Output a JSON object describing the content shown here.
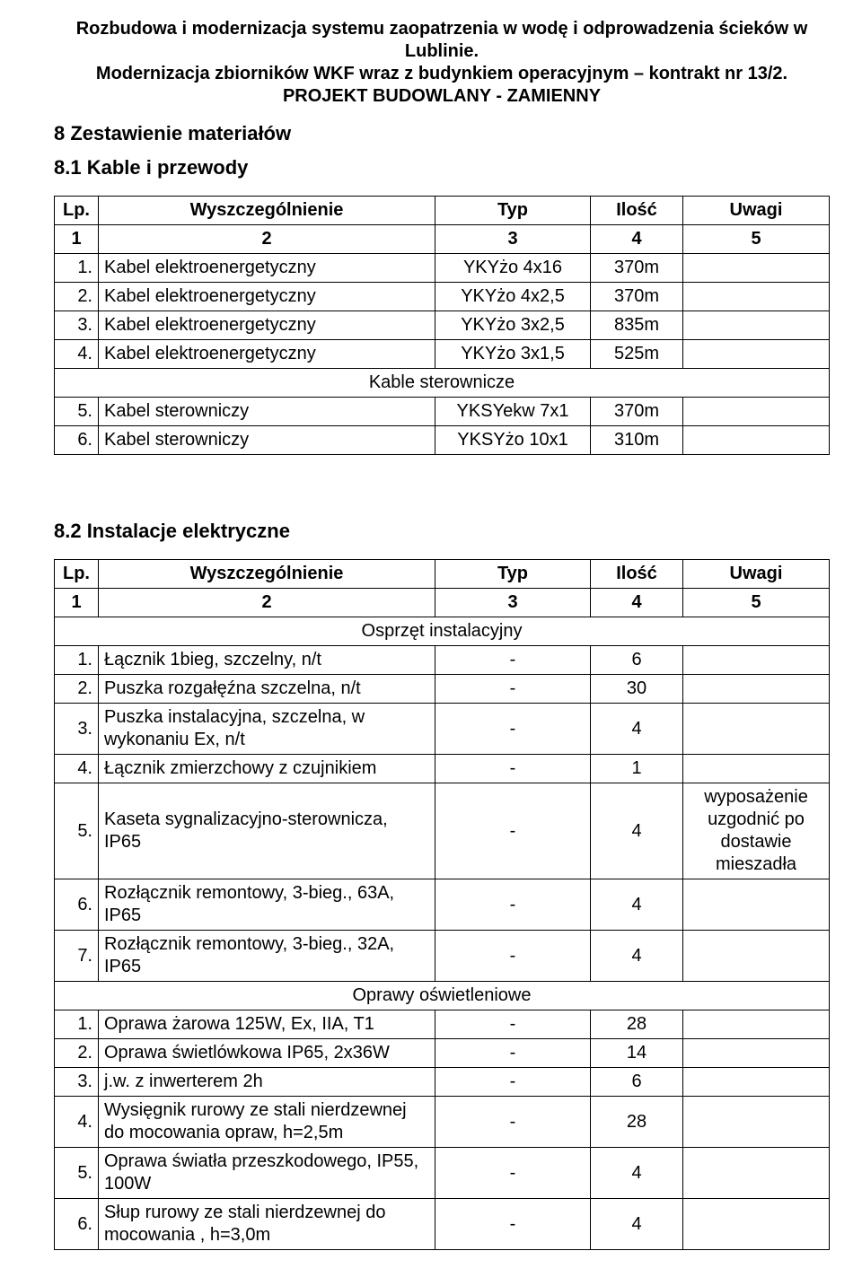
{
  "header": {
    "line1": "Rozbudowa i modernizacja systemu zaopatrzenia w wodę i odprowadzenia ścieków w Lublinie.",
    "line2": "Modernizacja zbiorników WKF wraz z budynkiem operacyjnym – kontrakt nr 13/2.",
    "line3": "PROJEKT BUDOWLANY - ZAMIENNY"
  },
  "section8": {
    "title": "8   Zestawienie materiałów",
    "sub1": {
      "title": "8.1   Kable i przewody",
      "columns": {
        "c1": "Lp.",
        "c2": "Wyszczególnienie",
        "c3": "Typ",
        "c4": "Ilość",
        "c5": "Uwagi"
      },
      "numrow": {
        "c1": "1",
        "c2": "2",
        "c3": "3",
        "c4": "4",
        "c5": "5"
      },
      "rows": [
        {
          "lp": "1.",
          "name": "Kabel elektroenergetyczny",
          "typ": "YKYżo 4x16",
          "ilosc": "370m",
          "uwagi": ""
        },
        {
          "lp": "2.",
          "name": "Kabel elektroenergetyczny",
          "typ": "YKYżo 4x2,5",
          "ilosc": "370m",
          "uwagi": ""
        },
        {
          "lp": "3.",
          "name": "Kabel elektroenergetyczny",
          "typ": "YKYżo 3x2,5",
          "ilosc": "835m",
          "uwagi": ""
        },
        {
          "lp": "4.",
          "name": "Kabel elektroenergetyczny",
          "typ": "YKYżo 3x1,5",
          "ilosc": "525m",
          "uwagi": ""
        }
      ],
      "section_label": "Kable sterownicze",
      "rows2": [
        {
          "lp": "5.",
          "name": "Kabel sterowniczy",
          "typ": "YKSYekw 7x1",
          "ilosc": "370m",
          "uwagi": ""
        },
        {
          "lp": "6.",
          "name": "Kabel sterowniczy",
          "typ": "YKSYżo 10x1",
          "ilosc": "310m",
          "uwagi": ""
        }
      ]
    },
    "sub2": {
      "title": "8.2   Instalacje elektryczne",
      "columns": {
        "c1": "Lp.",
        "c2": "Wyszczególnienie",
        "c3": "Typ",
        "c4": "Ilość",
        "c5": "Uwagi"
      },
      "numrow": {
        "c1": "1",
        "c2": "2",
        "c3": "3",
        "c4": "4",
        "c5": "5"
      },
      "group1_label": "Osprzęt instalacyjny",
      "group1": [
        {
          "lp": "1.",
          "name": "Łącznik 1bieg, szczelny, n/t",
          "typ": "-",
          "ilosc": "6",
          "uwagi": ""
        },
        {
          "lp": "2.",
          "name": "Puszka rozgałęźna szczelna, n/t",
          "typ": "-",
          "ilosc": "30",
          "uwagi": ""
        },
        {
          "lp": "3.",
          "name": "Puszka instalacyjna, szczelna, w wykonaniu Ex, n/t",
          "typ": "-",
          "ilosc": "4",
          "uwagi": ""
        },
        {
          "lp": "4.",
          "name": "Łącznik zmierzchowy z czujnikiem",
          "typ": "-",
          "ilosc": "1",
          "uwagi": ""
        },
        {
          "lp": "5.",
          "name": "Kaseta sygnalizacyjno-sterownicza, IP65",
          "typ": "-",
          "ilosc": "4",
          "uwagi": "wyposażenie uzgodnić po dostawie mieszadła"
        },
        {
          "lp": "6.",
          "name": "Rozłącznik remontowy, 3-bieg., 63A, IP65",
          "typ": "-",
          "ilosc": "4",
          "uwagi": ""
        },
        {
          "lp": "7.",
          "name": "Rozłącznik remontowy, 3-bieg., 32A, IP65",
          "typ": "-",
          "ilosc": "4",
          "uwagi": ""
        }
      ],
      "group2_label": "Oprawy oświetleniowe",
      "group2": [
        {
          "lp": "1.",
          "name": "Oprawa żarowa 125W, Ex, IIA, T1",
          "typ": "-",
          "ilosc": "28",
          "uwagi": ""
        },
        {
          "lp": "2.",
          "name": "Oprawa świetlówkowa IP65, 2x36W",
          "typ": "-",
          "ilosc": "14",
          "uwagi": ""
        },
        {
          "lp": "3.",
          "name": "j.w. z inwerterem 2h",
          "typ": "-",
          "ilosc": "6",
          "uwagi": ""
        },
        {
          "lp": "4.",
          "name": "Wysięgnik rurowy ze stali nierdzewnej do mocowania opraw, h=2,5m",
          "typ": "-",
          "ilosc": "28",
          "uwagi": ""
        },
        {
          "lp": "5.",
          "name": "Oprawa światła przeszkodowego, IP55, 100W",
          "typ": "-",
          "ilosc": "4",
          "uwagi": ""
        },
        {
          "lp": "6.",
          "name": "Słup rurowy ze stali nierdzewnej do mocowania , h=3,0m",
          "typ": "-",
          "ilosc": "4",
          "uwagi": ""
        }
      ]
    }
  }
}
